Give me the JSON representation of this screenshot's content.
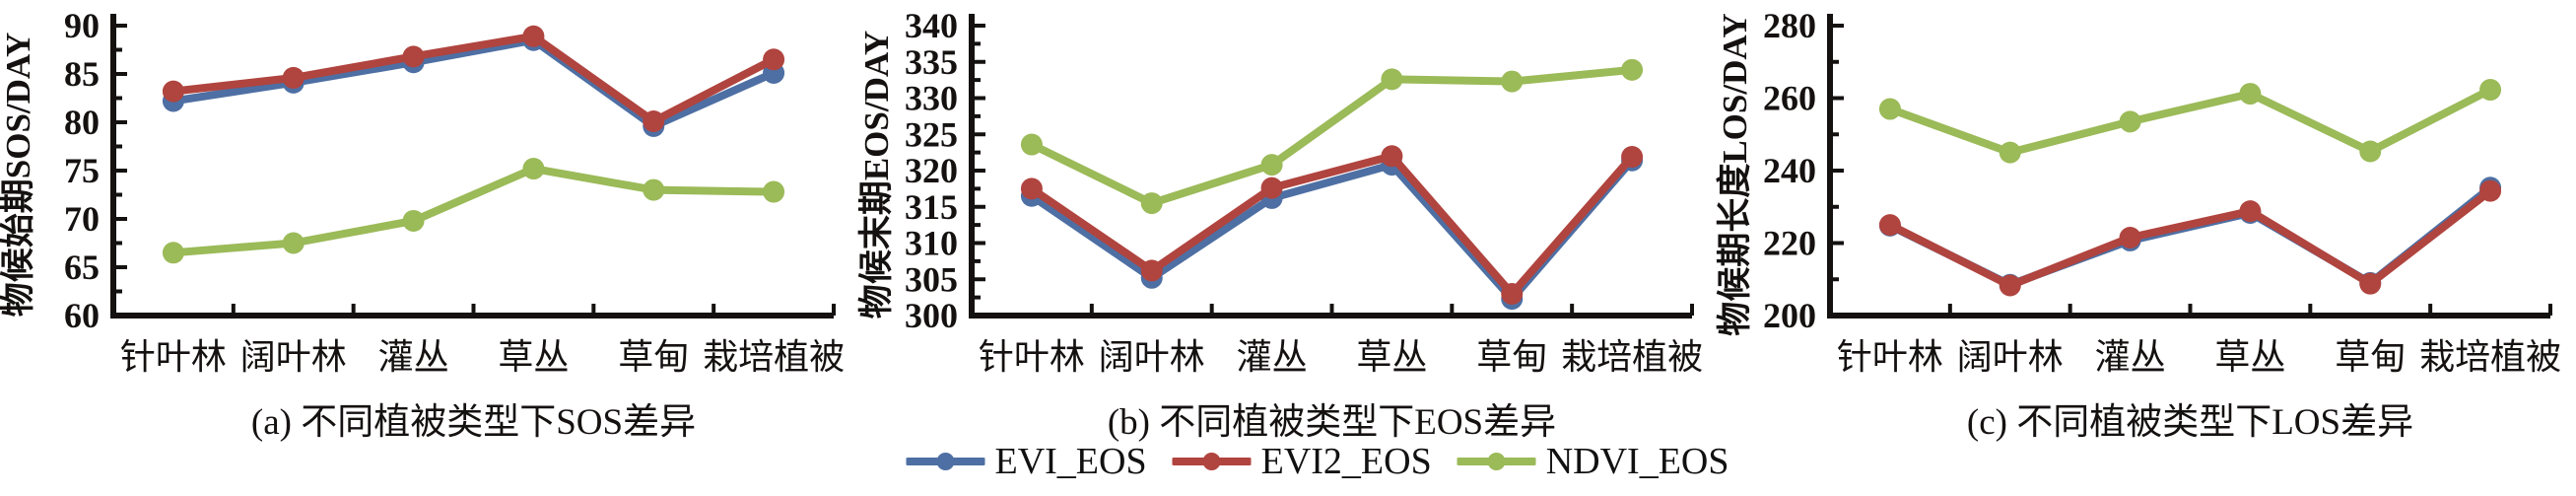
{
  "figure": {
    "background": "#ffffff",
    "colors": {
      "evi": "#4e6fa3",
      "evi2": "#b0443f",
      "ndvi": "#9bba58",
      "axis": "#141110"
    },
    "legend": {
      "position": "bottom-center",
      "items": [
        {
          "label": "EVI_EOS",
          "color_key": "evi"
        },
        {
          "label": "EVI2_EOS",
          "color_key": "evi2"
        },
        {
          "label": "NDVI_EOS",
          "color_key": "ndvi"
        }
      ]
    }
  },
  "chart_data": [
    {
      "id": "a",
      "type": "line",
      "title": "(a) 不同植被类型下SOS差异",
      "ylabel": "物候始期SOS/DAY",
      "xlabel": "",
      "categories": [
        "针叶林",
        "阔叶林",
        "灌丛",
        "草丛",
        "草甸",
        "栽培植被"
      ],
      "ylim": [
        60,
        90
      ],
      "ytick_step": 5,
      "ytick_labels": [
        "60",
        "65",
        "70",
        "75",
        "80",
        "85",
        "90"
      ],
      "grid": false,
      "legend_position": "shared-bottom",
      "series": [
        {
          "name": "EVI_EOS",
          "color_key": "evi",
          "values": [
            82.2,
            84.1,
            86.2,
            88.5,
            79.6,
            85.1
          ]
        },
        {
          "name": "EVI2_EOS",
          "color_key": "evi2",
          "values": [
            83.2,
            84.6,
            86.8,
            88.9,
            80.1,
            86.5
          ]
        },
        {
          "name": "NDVI_EOS",
          "color_key": "ndvi",
          "values": [
            66.5,
            67.5,
            69.8,
            75.2,
            73.0,
            72.8
          ]
        }
      ]
    },
    {
      "id": "b",
      "type": "line",
      "title": "(b) 不同植被类型下EOS差异",
      "ylabel": "物候末期EOS/DAY",
      "xlabel": "",
      "categories": [
        "针叶林",
        "阔叶林",
        "灌丛",
        "草丛",
        "草甸",
        "栽培植被"
      ],
      "ylim": [
        300,
        340
      ],
      "ytick_step": 5,
      "ytick_labels": [
        "300",
        "305",
        "310",
        "315",
        "320",
        "325",
        "330",
        "335",
        "340"
      ],
      "grid": false,
      "legend_position": "shared-bottom",
      "series": [
        {
          "name": "EVI_EOS",
          "color_key": "evi",
          "values": [
            316.5,
            305.2,
            316.2,
            320.8,
            302.3,
            321.4
          ]
        },
        {
          "name": "EVI2_EOS",
          "color_key": "evi2",
          "values": [
            317.5,
            306.2,
            317.6,
            322.0,
            303.0,
            321.9
          ]
        },
        {
          "name": "NDVI_EOS",
          "color_key": "ndvi",
          "values": [
            323.6,
            315.5,
            320.8,
            332.6,
            332.3,
            333.9
          ]
        }
      ]
    },
    {
      "id": "c",
      "type": "line",
      "title": "(c) 不同植被类型下LOS差异",
      "ylabel": "物候期长度LOS/DAY",
      "xlabel": "",
      "categories": [
        "针叶林",
        "阔叶林",
        "灌丛",
        "草丛",
        "草甸",
        "栽培植被"
      ],
      "ylim": [
        200,
        280
      ],
      "ytick_step": 20,
      "ytick_labels": [
        "200",
        "220",
        "240",
        "260",
        "280"
      ],
      "grid": false,
      "legend_position": "shared-bottom",
      "series": [
        {
          "name": "EVI_EOS",
          "color_key": "evi",
          "values": [
            224.8,
            208.5,
            220.7,
            228.3,
            209.0,
            235.3
          ]
        },
        {
          "name": "EVI2_EOS",
          "color_key": "evi2",
          "values": [
            225.0,
            208.3,
            221.5,
            228.8,
            208.8,
            234.4
          ]
        },
        {
          "name": "NDVI_EOS",
          "color_key": "ndvi",
          "values": [
            257.0,
            245.0,
            253.5,
            261.2,
            245.3,
            262.3
          ]
        }
      ]
    }
  ]
}
